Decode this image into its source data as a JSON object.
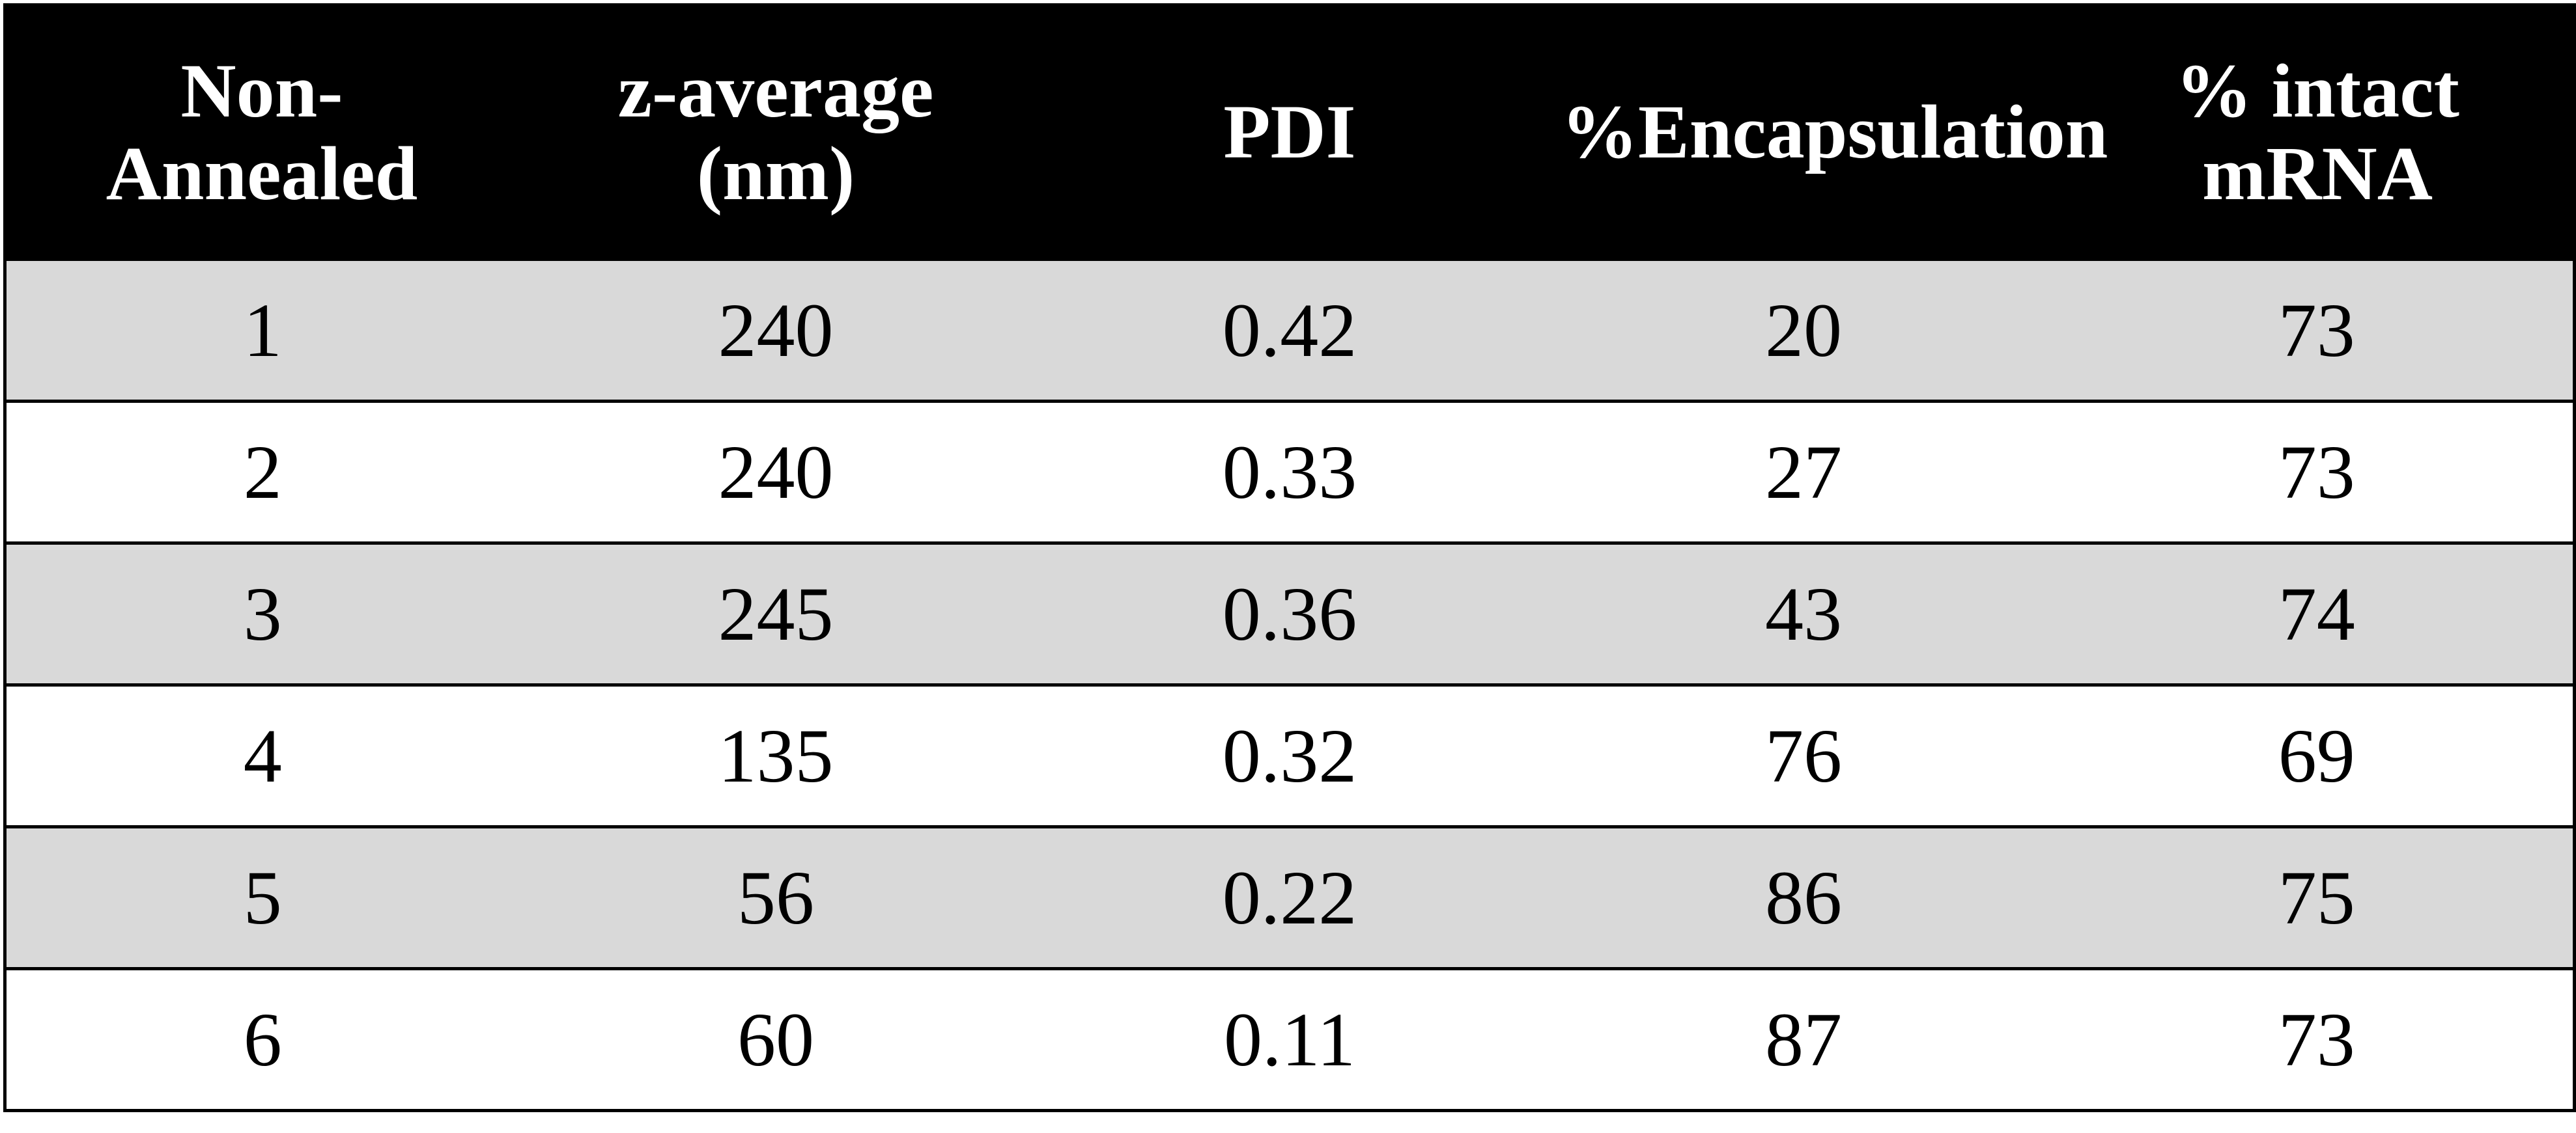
{
  "chart_data": {
    "type": "table",
    "columns": [
      "Non-\nAnnealed",
      "z-average\n(nm)",
      "PDI",
      "%Encapsulation",
      "% intact\nmRNA"
    ],
    "rows": [
      [
        "1",
        "240",
        "0.42",
        "20",
        "73"
      ],
      [
        "2",
        "240",
        "0.33",
        "27",
        "73"
      ],
      [
        "3",
        "245",
        "0.36",
        "43",
        "74"
      ],
      [
        "4",
        "135",
        "0.32",
        "76",
        "69"
      ],
      [
        "5",
        "56",
        "0.22",
        "86",
        "75"
      ],
      [
        "6",
        "60",
        "0.11",
        "87",
        "73"
      ]
    ]
  },
  "colors": {
    "header_background": "#000000",
    "header_text": "#ffffff",
    "shaded_row": "#d9d9d9",
    "plain_row": "#ffffff"
  }
}
